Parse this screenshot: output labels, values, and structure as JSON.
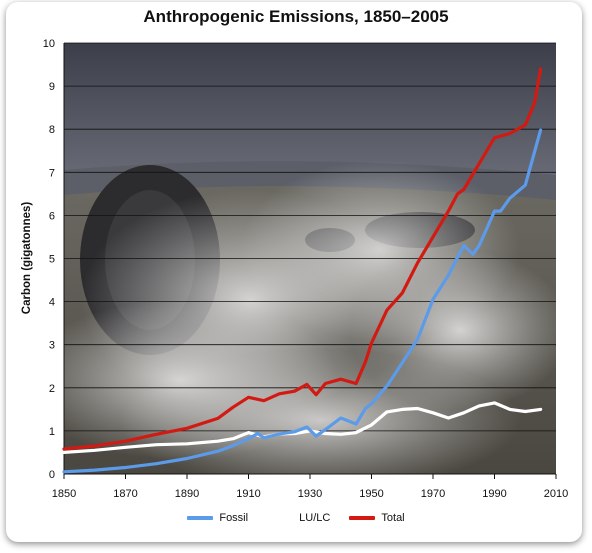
{
  "chart_data": {
    "type": "line",
    "title": "Anthropogenic Emissions, 1850–2005",
    "xlabel": "",
    "ylabel": "Carbon (gigatonnes)",
    "xlim": [
      1850,
      2010
    ],
    "ylim": [
      0,
      10
    ],
    "xticks": [
      1850,
      1870,
      1890,
      1910,
      1930,
      1950,
      1970,
      1990,
      2010
    ],
    "yticks": [
      0,
      1,
      2,
      3,
      4,
      5,
      6,
      7,
      8,
      9,
      10
    ],
    "grid": "horizontal",
    "legend_position": "bottom",
    "series": [
      {
        "name": "Fossil",
        "color": "#5b9bea",
        "x": [
          1850,
          1860,
          1870,
          1880,
          1890,
          1900,
          1905,
          1910,
          1913,
          1915,
          1920,
          1925,
          1929,
          1932,
          1935,
          1940,
          1945,
          1948,
          1950,
          1955,
          1960,
          1965,
          1970,
          1975,
          1978,
          1980,
          1983,
          1985,
          1990,
          1992,
          1995,
          2000,
          2005
        ],
        "values": [
          0.05,
          0.09,
          0.15,
          0.24,
          0.36,
          0.53,
          0.66,
          0.82,
          0.94,
          0.84,
          0.93,
          0.98,
          1.09,
          0.88,
          1.03,
          1.3,
          1.16,
          1.52,
          1.63,
          2.04,
          2.58,
          3.13,
          4.05,
          4.61,
          5.03,
          5.3,
          5.1,
          5.3,
          6.1,
          6.1,
          6.4,
          6.7,
          7.98
        ]
      },
      {
        "name": "LU/LC",
        "color": "#ffffff",
        "x": [
          1850,
          1860,
          1870,
          1880,
          1890,
          1900,
          1905,
          1910,
          1915,
          1920,
          1925,
          1930,
          1935,
          1940,
          1945,
          1950,
          1955,
          1960,
          1965,
          1970,
          1975,
          1980,
          1985,
          1990,
          1995,
          2000,
          2005
        ],
        "values": [
          0.5,
          0.55,
          0.62,
          0.68,
          0.7,
          0.76,
          0.82,
          0.96,
          0.86,
          0.93,
          0.94,
          1.0,
          0.94,
          0.92,
          0.96,
          1.14,
          1.44,
          1.5,
          1.52,
          1.42,
          1.3,
          1.42,
          1.58,
          1.65,
          1.5,
          1.45,
          1.5
        ]
      },
      {
        "name": "Total",
        "color": "#d21a12",
        "x": [
          1850,
          1860,
          1870,
          1880,
          1890,
          1900,
          1905,
          1910,
          1915,
          1920,
          1925,
          1929,
          1932,
          1935,
          1940,
          1945,
          1948,
          1950,
          1955,
          1960,
          1965,
          1970,
          1975,
          1978,
          1980,
          1985,
          1990,
          1995,
          2000,
          2003,
          2005
        ],
        "values": [
          0.58,
          0.65,
          0.76,
          0.92,
          1.06,
          1.29,
          1.55,
          1.78,
          1.7,
          1.86,
          1.92,
          2.08,
          1.84,
          2.1,
          2.2,
          2.1,
          2.6,
          3.04,
          3.8,
          4.2,
          4.9,
          5.5,
          6.1,
          6.5,
          6.6,
          7.2,
          7.8,
          7.9,
          8.1,
          8.6,
          9.4
        ]
      }
    ]
  }
}
